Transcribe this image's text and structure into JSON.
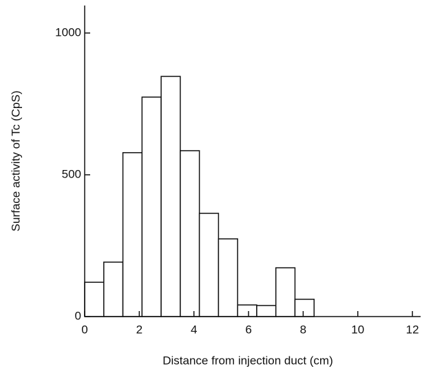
{
  "chart_data": {
    "type": "histogram",
    "x_label": "Distance from injection duct (cm)",
    "y_label": "Surface activity of Tc (CpS)",
    "bins": [
      0,
      0.7,
      1.4,
      2.1,
      2.8,
      3.5,
      4.2,
      4.9,
      5.6,
      6.3,
      7.0,
      7.7,
      8.4
    ],
    "values": [
      121,
      192,
      578,
      774,
      847,
      585,
      364,
      274,
      41,
      39,
      172,
      61
    ],
    "color": "#ffffff",
    "xlim": [
      0,
      12.3
    ],
    "xticks": [
      0,
      2,
      4,
      6,
      8,
      10,
      12
    ],
    "ylim": [
      0,
      1097
    ],
    "yticks": [
      0,
      500,
      1000
    ],
    "grid": false
  }
}
